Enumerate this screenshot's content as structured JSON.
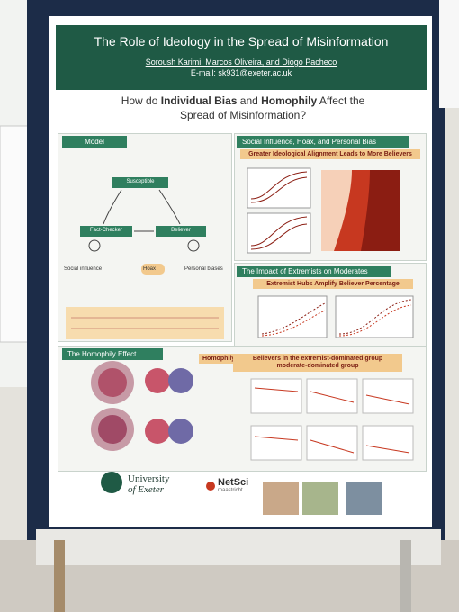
{
  "poster": {
    "title": "The Role of Ideology in the Spread of Misinformation",
    "authors": "Soroush Karimi, Marcos Oliveira, and Diogo Pacheco",
    "email": "E-mail: sk931@exeter.ac.uk",
    "question": [
      "How do",
      "Individual Bias",
      "and",
      "Homophily",
      "Affect the",
      "Spread of Misinformation?"
    ],
    "model": {
      "title": "Model",
      "states": [
        "Susceptible",
        "Fact-Checker",
        "Believer"
      ],
      "legend": [
        "Social influence",
        "Hoax",
        "Personal biases"
      ]
    },
    "social": {
      "title": "Social Influence, Hoax, and Personal Bias",
      "subtitle": "Greater Ideological Alignment Leads to More Believers"
    },
    "extremists": {
      "title": "The Impact of Extremists on Moderates",
      "subtitle": "Extremist Hubs Amplify Believer Percentage"
    },
    "homophily": {
      "title": "The Homophily Effect",
      "tag": "Homophily",
      "subtitle": [
        "Believers in the",
        "extremist-dominated group",
        "moderate-dominated group"
      ]
    },
    "logos": {
      "university": [
        "University",
        "of Exeter"
      ],
      "netsci": [
        "NetSci",
        "maastricht"
      ]
    }
  }
}
